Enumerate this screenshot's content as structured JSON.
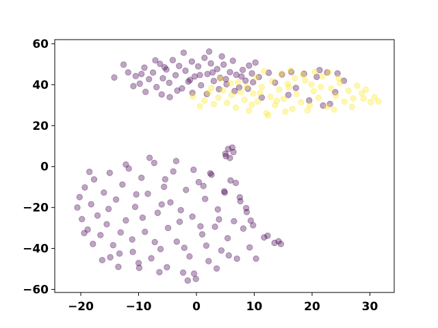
{
  "chart_data": {
    "type": "scatter",
    "title": "",
    "xlabel": "",
    "ylabel": "",
    "xlim": [
      -24.5,
      34.2
    ],
    "ylim": [
      -61.5,
      62.0
    ],
    "xticks": [
      -20,
      -10,
      0,
      10,
      20,
      30
    ],
    "yticks": [
      -60,
      -40,
      -20,
      0,
      20,
      40,
      60
    ],
    "xtick_labels": [
      "−20",
      "−10",
      "0",
      "10",
      "20",
      "30"
    ],
    "ytick_labels": [
      "−60",
      "−40",
      "−20",
      "0",
      "20",
      "40",
      "60"
    ],
    "grid": false,
    "legend": "none",
    "marker_alpha": 0.35,
    "series": [
      {
        "color": "#440154",
        "points": [
          [
            -14.2,
            43.5
          ],
          [
            -11.8,
            46.0
          ],
          [
            -10.5,
            44.2
          ],
          [
            -9.8,
            40.5
          ],
          [
            -9.0,
            48.3
          ],
          [
            -8.2,
            42.7
          ],
          [
            -7.5,
            45.9
          ],
          [
            -6.9,
            38.8
          ],
          [
            -6.3,
            50.2
          ],
          [
            -5.8,
            43.1
          ],
          [
            -5.2,
            47.4
          ],
          [
            -4.7,
            40.9
          ],
          [
            -4.1,
            52.0
          ],
          [
            -3.6,
            44.6
          ],
          [
            -3.0,
            49.1
          ],
          [
            -2.5,
            38.2
          ],
          [
            -1.9,
            46.8
          ],
          [
            -1.4,
            41.5
          ],
          [
            -0.8,
            51.3
          ],
          [
            -0.3,
            44.0
          ],
          [
            0.3,
            48.9
          ],
          [
            0.8,
            39.7
          ],
          [
            1.4,
            53.1
          ],
          [
            1.9,
            45.2
          ],
          [
            2.5,
            50.4
          ],
          [
            3.0,
            41.8
          ],
          [
            3.6,
            47.6
          ],
          [
            4.1,
            43.3
          ],
          [
            4.7,
            49.8
          ],
          [
            5.2,
            40.2
          ],
          [
            5.8,
            46.1
          ],
          [
            6.3,
            51.7
          ],
          [
            6.9,
            44.8
          ],
          [
            7.4,
            38.6
          ],
          [
            8.0,
            47.2
          ],
          [
            8.5,
            42.0
          ],
          [
            9.1,
            49.3
          ],
          [
            9.6,
            45.5
          ],
          [
            10.2,
            50.8
          ],
          [
            10.8,
            43.7
          ],
          [
            -8.8,
            36.5
          ],
          [
            -6.0,
            35.2
          ],
          [
            -3.3,
            37.1
          ],
          [
            -0.7,
            36.0
          ],
          [
            1.8,
            35.4
          ],
          [
            3.9,
            37.8
          ],
          [
            6.6,
            36.9
          ],
          [
            -12.6,
            49.8
          ],
          [
            -2.2,
            55.6
          ],
          [
            2.2,
            56.2
          ],
          [
            -7.1,
            51.9
          ],
          [
            4.4,
            53.8
          ],
          [
            -10.9,
            39.3
          ],
          [
            -1.1,
            42.3
          ],
          [
            0.6,
            44.7
          ],
          [
            7.8,
            44.0
          ],
          [
            9.8,
            41.2
          ],
          [
            12.5,
            45.8
          ],
          [
            14.8,
            45.0
          ],
          [
            16.4,
            46.2
          ],
          [
            18.6,
            45.3
          ],
          [
            21.3,
            47.1
          ],
          [
            22.6,
            46.0
          ],
          [
            24.4,
            45.5
          ],
          [
            13.6,
            41.0
          ],
          [
            17.2,
            38.4
          ],
          [
            19.5,
            32.3
          ],
          [
            23.1,
            30.6
          ],
          [
            11.3,
            33.7
          ],
          [
            15.9,
            35.0
          ],
          [
            20.8,
            43.8
          ],
          [
            25.5,
            41.9
          ],
          [
            24.0,
            36.3
          ],
          [
            21.9,
            29.8
          ],
          [
            -4.6,
            33.9
          ],
          [
            -9.5,
            45.2
          ],
          [
            5.1,
            42.7
          ],
          [
            8.9,
            38.0
          ],
          [
            2.8,
            46.0
          ],
          [
            -5.5,
            48.5
          ],
          [
            5.0,
            6.3
          ],
          [
            5.5,
            8.6
          ],
          [
            6.2,
            9.3
          ],
          [
            5.8,
            4.2
          ],
          [
            6.4,
            7.1
          ],
          [
            5.1,
            5.1
          ],
          [
            -20.6,
            -20.0
          ],
          [
            -20.2,
            -14.9
          ],
          [
            -19.8,
            -25.7
          ],
          [
            -19.3,
            -10.2
          ],
          [
            -18.8,
            -30.8
          ],
          [
            -18.2,
            -18.4
          ],
          [
            -17.7,
            -6.3
          ],
          [
            -17.1,
            -23.9
          ],
          [
            -16.6,
            -33.5
          ],
          [
            -16.0,
            -12.7
          ],
          [
            -15.5,
            -28.2
          ],
          [
            -15.0,
            -3.1
          ],
          [
            -14.4,
            -38.4
          ],
          [
            -13.9,
            -16.1
          ],
          [
            -13.3,
            -42.5
          ],
          [
            -12.8,
            -8.8
          ],
          [
            -12.2,
            -26.3
          ],
          [
            -11.7,
            -1.0
          ],
          [
            -11.1,
            -35.6
          ],
          [
            -10.6,
            -19.7
          ],
          [
            -10.0,
            -47.1
          ],
          [
            -9.5,
            -5.5
          ],
          [
            -8.9,
            -31.9
          ],
          [
            -8.4,
            -13.3
          ],
          [
            -7.8,
            -44.8
          ],
          [
            -7.3,
            1.8
          ],
          [
            -6.7,
            -22.6
          ],
          [
            -6.2,
            -40.3
          ],
          [
            -5.6,
            -9.9
          ],
          [
            -5.1,
            -49.2
          ],
          [
            -4.5,
            -17.5
          ],
          [
            -4.0,
            -2.4
          ],
          [
            -3.4,
            -36.7
          ],
          [
            -2.9,
            -27.0
          ],
          [
            -2.3,
            -51.8
          ],
          [
            -1.8,
            -11.4
          ],
          [
            -1.2,
            -43.9
          ],
          [
            -0.7,
            -24.5
          ],
          [
            -0.1,
            -54.9
          ],
          [
            0.4,
            -7.6
          ],
          [
            1.0,
            -33.1
          ],
          [
            1.5,
            -15.8
          ],
          [
            2.1,
            -46.2
          ],
          [
            2.6,
            -4.0
          ],
          [
            3.2,
            -29.4
          ],
          [
            3.7,
            -20.9
          ],
          [
            4.3,
            -41.0
          ],
          [
            4.8,
            -12.1
          ],
          [
            5.4,
            -35.0
          ],
          [
            5.9,
            -6.8
          ],
          [
            6.5,
            -26.7
          ],
          [
            7.0,
            -45.0
          ],
          [
            7.6,
            -16.9
          ],
          [
            8.1,
            -30.3
          ],
          [
            8.7,
            -22.2
          ],
          [
            9.2,
            -39.5
          ],
          [
            9.8,
            -28.7
          ],
          [
            10.3,
            -45.0
          ],
          [
            11.7,
            -34.6
          ],
          [
            12.3,
            -33.8
          ],
          [
            13.5,
            -37.3
          ],
          [
            14.2,
            -36.5
          ],
          [
            14.6,
            -37.8
          ],
          [
            -14.9,
            -44.3
          ],
          [
            -13.5,
            -49.0
          ],
          [
            -9.9,
            -49.5
          ],
          [
            -6.4,
            -51.6
          ],
          [
            -1.5,
            -55.7
          ],
          [
            -0.4,
            -52.3
          ],
          [
            3.5,
            -49.8
          ],
          [
            -12.2,
            1.0
          ],
          [
            -8.1,
            4.3
          ],
          [
            -3.5,
            2.7
          ],
          [
            -0.5,
            -1.6
          ],
          [
            2.4,
            -3.3
          ],
          [
            4.9,
            -12.7
          ],
          [
            6.8,
            -8.0
          ],
          [
            7.5,
            -15.0
          ],
          [
            8.6,
            -20.3
          ],
          [
            9.4,
            -26.4
          ],
          [
            -17.9,
            -37.8
          ],
          [
            -19.4,
            -32.5
          ],
          [
            -16.3,
            -45.7
          ],
          [
            -11.0,
            -41.7
          ],
          [
            -7.2,
            -36.9
          ],
          [
            -2.1,
            -39.7
          ],
          [
            1.7,
            -38.6
          ],
          [
            5.6,
            -43.4
          ],
          [
            -15.2,
            -20.7
          ],
          [
            -9.3,
            -25.0
          ],
          [
            -4.9,
            -30.0
          ],
          [
            0.7,
            -29.2
          ],
          [
            3.9,
            -25.8
          ],
          [
            -13.1,
            -32.2
          ],
          [
            -6.0,
            -18.5
          ],
          [
            -2.7,
            -21.3
          ],
          [
            -10.4,
            -13.6
          ],
          [
            -5.4,
            -6.2
          ],
          [
            1.2,
            -9.5
          ],
          [
            -18.5,
            -2.6
          ]
        ]
      },
      {
        "color": "#fde725",
        "points": [
          [
            -0.6,
            34.3
          ],
          [
            0.6,
            29.4
          ],
          [
            1.4,
            32.2
          ],
          [
            2.1,
            36.1
          ],
          [
            3.0,
            30.5
          ],
          [
            3.8,
            33.7
          ],
          [
            4.6,
            37.2
          ],
          [
            5.3,
            31.1
          ],
          [
            6.1,
            34.9
          ],
          [
            6.8,
            28.8
          ],
          [
            7.6,
            36.4
          ],
          [
            8.3,
            32.6
          ],
          [
            9.1,
            27.3
          ],
          [
            9.8,
            35.7
          ],
          [
            10.6,
            31.8
          ],
          [
            11.3,
            38.9
          ],
          [
            12.1,
            26.1
          ],
          [
            12.8,
            34.0
          ],
          [
            13.6,
            29.9
          ],
          [
            14.3,
            37.6
          ],
          [
            15.1,
            33.1
          ],
          [
            15.8,
            40.3
          ],
          [
            16.6,
            28.2
          ],
          [
            17.3,
            35.4
          ],
          [
            18.1,
            31.4
          ],
          [
            18.8,
            42.0
          ],
          [
            19.6,
            30.0
          ],
          [
            20.3,
            36.8
          ],
          [
            21.1,
            33.6
          ],
          [
            21.8,
            44.1
          ],
          [
            22.6,
            29.2
          ],
          [
            23.3,
            38.2
          ],
          [
            24.1,
            34.6
          ],
          [
            24.8,
            40.8
          ],
          [
            25.6,
            31.7
          ],
          [
            26.3,
            37.0
          ],
          [
            27.1,
            33.3
          ],
          [
            27.8,
            39.5
          ],
          [
            28.6,
            35.8
          ],
          [
            29.3,
            37.6
          ],
          [
            30.1,
            31.5
          ],
          [
            30.8,
            33.9
          ],
          [
            31.5,
            31.8
          ],
          [
            10.3,
            43.5
          ],
          [
            11.7,
            46.5
          ],
          [
            14.7,
            45.4
          ],
          [
            16.3,
            47.0
          ],
          [
            18.4,
            44.8
          ],
          [
            20.5,
            46.3
          ],
          [
            22.9,
            45.9
          ],
          [
            13.1,
            41.6
          ],
          [
            12.4,
            25.0
          ],
          [
            15.4,
            26.8
          ],
          [
            19.2,
            27.5
          ],
          [
            23.8,
            27.9
          ],
          [
            26.9,
            29.1
          ],
          [
            28.9,
            33.2
          ],
          [
            17.0,
            43.1
          ],
          [
            8.7,
            39.0
          ],
          [
            5.9,
            40.6
          ],
          [
            4.1,
            42.9
          ],
          [
            2.6,
            38.4
          ],
          [
            7.2,
            41.2
          ],
          [
            9.6,
            30.2
          ],
          [
            11.0,
            36.0
          ],
          [
            13.9,
            32.1
          ],
          [
            16.0,
            38.7
          ],
          [
            19.9,
            40.1
          ],
          [
            21.5,
            38.9
          ],
          [
            24.6,
            43.3
          ]
        ]
      }
    ]
  }
}
